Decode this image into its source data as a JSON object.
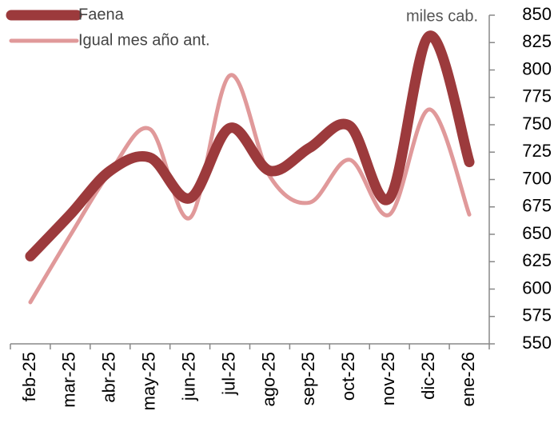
{
  "chart_data": {
    "type": "line",
    "unit_label": "miles cab.",
    "categories": [
      "feb-25",
      "mar-25",
      "abr-25",
      "may-25",
      "jun-25",
      "jul-25",
      "ago-25",
      "sep-25",
      "oct-25",
      "nov-25",
      "dic-25",
      "ene-26"
    ],
    "series": [
      {
        "name": "Faena",
        "color": "#9c3a3c",
        "values": [
          630,
          668,
          708,
          720,
          683,
          747,
          708,
          729,
          749,
          683,
          831,
          716
        ]
      },
      {
        "name": "Igual mes año ant.",
        "color": "#e0999a",
        "values": [
          588,
          649,
          707,
          746,
          665,
          795,
          703,
          679,
          718,
          668,
          764,
          668
        ]
      }
    ],
    "ylim": [
      550,
      850
    ],
    "yticks": [
      550,
      575,
      600,
      625,
      650,
      675,
      700,
      725,
      750,
      775,
      800,
      825,
      850
    ],
    "axis_side": "right",
    "smooth": true
  }
}
